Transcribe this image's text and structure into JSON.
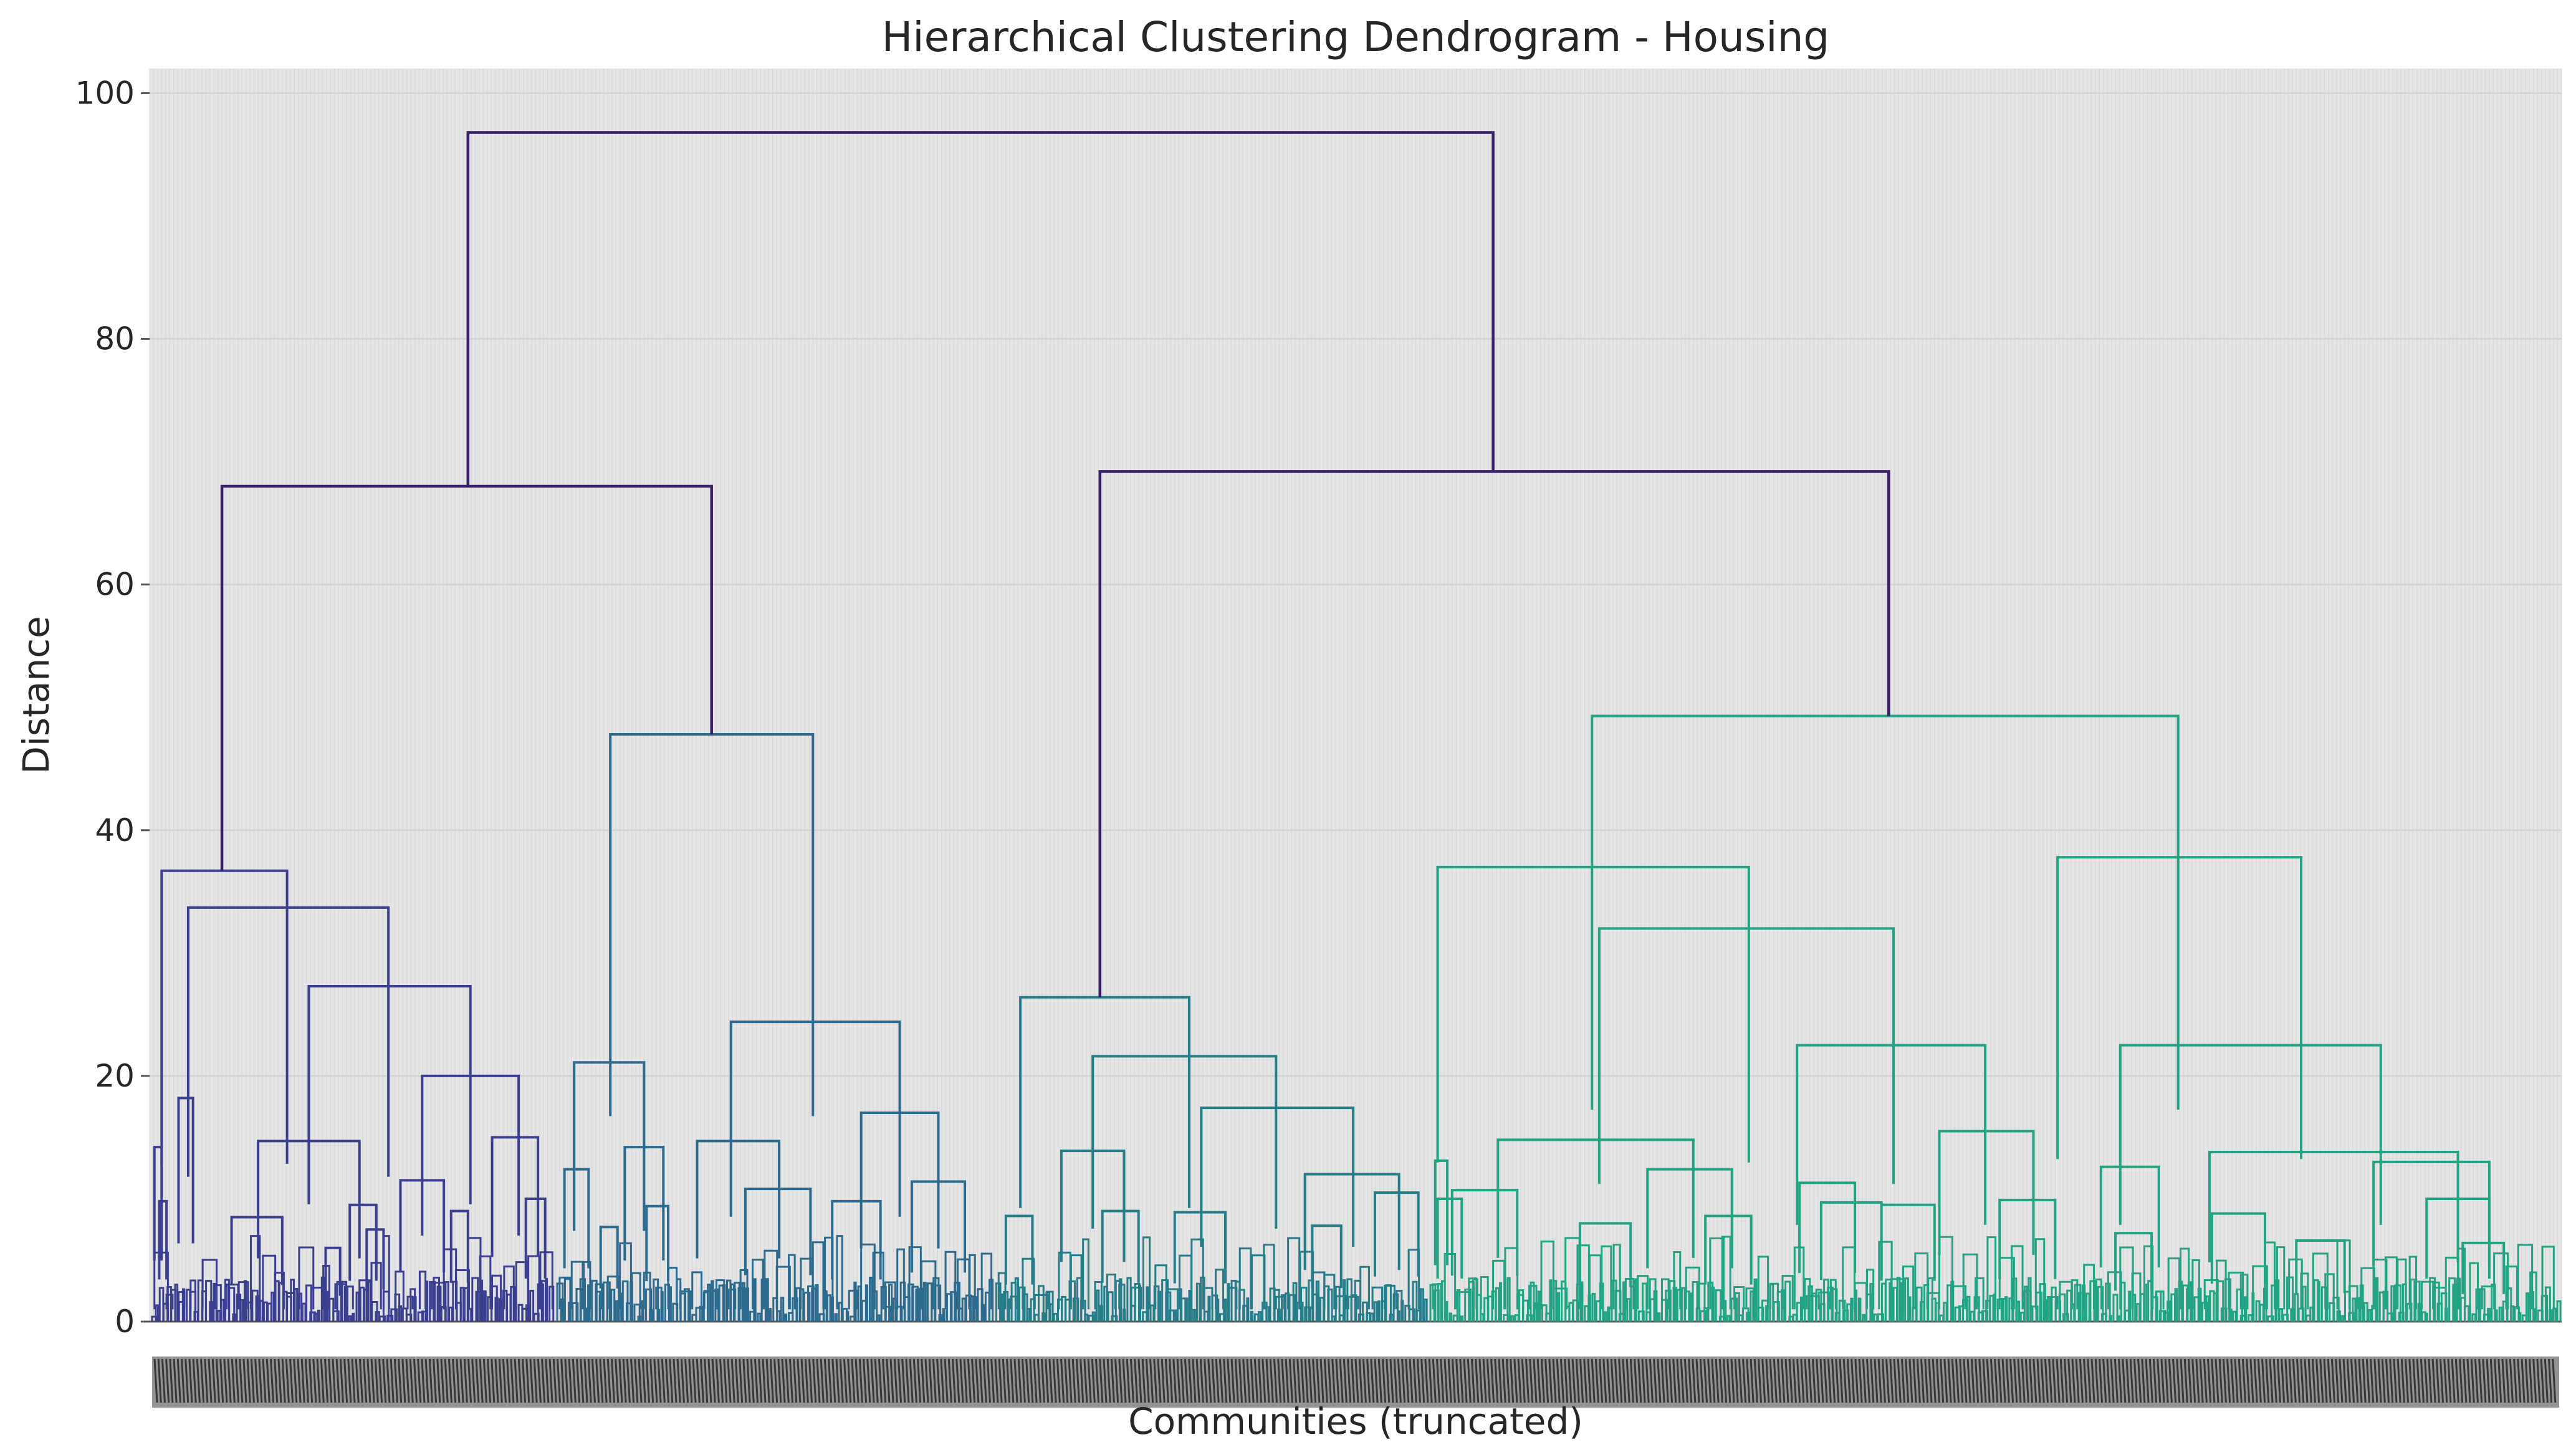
{
  "chart_data": {
    "type": "dendrogram",
    "title": "Hierarchical Clustering Dendrogram - Housing",
    "xlabel": "Communities (truncated)",
    "ylabel": "Distance",
    "ylim": [
      0,
      102
    ],
    "yticks": [
      0,
      20,
      40,
      60,
      80,
      100
    ],
    "xlim": [
      0,
      1000
    ],
    "grid": true,
    "leaf_labels": "dense, overlapping numeric leaf labels (illegible)",
    "colors": {
      "background": "#e5e5e5",
      "grid": "#d2d2d2",
      "top_link": "#3b1f6b",
      "cluster_1": "#3b3f8f",
      "cluster_2": "#2c6a8e",
      "cluster_3": "#267d8a",
      "cluster_4": "#22a384"
    },
    "top_links": [
      {
        "xl": 132,
        "xr": 557,
        "h": 96.8
      },
      {
        "xl": 30,
        "xr": 233,
        "h": 68.0
      },
      {
        "xl": 394,
        "xr": 721,
        "h": 69.2
      }
    ],
    "clusters": [
      {
        "name": "cluster_1",
        "color": "#3b3f8f",
        "links": [
          {
            "xl": 5,
            "xr": 57,
            "h": 36.7
          },
          {
            "xl": 16,
            "xr": 99,
            "h": 33.7
          },
          {
            "xl": 66,
            "xr": 133,
            "h": 27.3
          },
          {
            "xl": 45,
            "xr": 87,
            "h": 14.7
          },
          {
            "xl": 113,
            "xr": 153,
            "h": 20.0
          },
          {
            "xl": 34,
            "xr": 55,
            "h": 8.5
          },
          {
            "xl": 83,
            "xr": 94,
            "h": 9.5
          },
          {
            "xl": 104,
            "xr": 122,
            "h": 11.5
          },
          {
            "xl": 142,
            "xr": 161,
            "h": 15.0
          },
          {
            "xl": 12,
            "xr": 18,
            "h": 18.2
          },
          {
            "xl": 2,
            "xr": 5,
            "h": 14.2
          },
          {
            "xl": 4,
            "xr": 7,
            "h": 9.8
          },
          {
            "xl": 156,
            "xr": 164,
            "h": 10.0
          },
          {
            "xl": 125,
            "xr": 132,
            "h": 9.0
          },
          {
            "xl": 73,
            "xr": 79,
            "h": 6.0
          },
          {
            "xl": 90,
            "xr": 97,
            "h": 7.5
          }
        ],
        "leaf_from": 0,
        "leaf_to": 168
      },
      {
        "name": "cluster_2",
        "color": "#2c6a8e",
        "links": [
          {
            "xl": 191,
            "xr": 275,
            "h": 47.8
          },
          {
            "xl": 176,
            "xr": 205,
            "h": 21.1
          },
          {
            "xl": 241,
            "xr": 311,
            "h": 24.4
          },
          {
            "xl": 227,
            "xr": 261,
            "h": 14.7
          },
          {
            "xl": 295,
            "xr": 327,
            "h": 17.0
          },
          {
            "xl": 172,
            "xr": 182,
            "h": 12.4
          },
          {
            "xl": 197,
            "xr": 213,
            "h": 14.2
          },
          {
            "xl": 247,
            "xr": 274,
            "h": 10.8
          },
          {
            "xl": 316,
            "xr": 338,
            "h": 11.4
          },
          {
            "xl": 283,
            "xr": 303,
            "h": 9.8
          },
          {
            "xl": 187,
            "xr": 194,
            "h": 7.7
          },
          {
            "xl": 206,
            "xr": 215,
            "h": 9.4
          }
        ],
        "leaf_from": 168,
        "leaf_to": 350
      },
      {
        "name": "cluster_3",
        "color": "#267d8a",
        "links": [
          {
            "xl": 361,
            "xr": 431,
            "h": 26.4
          },
          {
            "xl": 391,
            "xr": 467,
            "h": 21.6
          },
          {
            "xl": 436,
            "xr": 499,
            "h": 17.4
          },
          {
            "xl": 378,
            "xr": 404,
            "h": 13.9
          },
          {
            "xl": 479,
            "xr": 518,
            "h": 12.0
          },
          {
            "xl": 508,
            "xr": 526,
            "h": 10.5
          },
          {
            "xl": 425,
            "xr": 446,
            "h": 8.9
          },
          {
            "xl": 395,
            "xr": 410,
            "h": 9.0
          },
          {
            "xl": 355,
            "xr": 366,
            "h": 8.6
          },
          {
            "xl": 482,
            "xr": 494,
            "h": 7.8
          }
        ],
        "leaf_from": 350,
        "leaf_to": 530
      },
      {
        "name": "cluster_4",
        "color": "#22a384",
        "links": [
          {
            "xl": 598,
            "xr": 841,
            "h": 49.3
          },
          {
            "xl": 534,
            "xr": 663,
            "h": 37.0
          },
          {
            "xl": 601,
            "xr": 723,
            "h": 32.0
          },
          {
            "xl": 791,
            "xr": 892,
            "h": 37.8
          },
          {
            "xl": 559,
            "xr": 640,
            "h": 14.8
          },
          {
            "xl": 683,
            "xr": 761,
            "h": 22.5
          },
          {
            "xl": 817,
            "xr": 925,
            "h": 22.5
          },
          {
            "xl": 742,
            "xr": 781,
            "h": 15.5
          },
          {
            "xl": 854,
            "xr": 957,
            "h": 13.8
          },
          {
            "xl": 922,
            "xr": 970,
            "h": 13.0
          },
          {
            "xl": 540,
            "xr": 567,
            "h": 10.7
          },
          {
            "xl": 621,
            "xr": 656,
            "h": 12.4
          },
          {
            "xl": 684,
            "xr": 707,
            "h": 11.3
          },
          {
            "xl": 809,
            "xr": 833,
            "h": 12.6
          },
          {
            "xl": 533,
            "xr": 538,
            "h": 13.1
          },
          {
            "xl": 534,
            "xr": 544,
            "h": 10.0
          },
          {
            "xl": 767,
            "xr": 790,
            "h": 9.9
          },
          {
            "xl": 718,
            "xr": 740,
            "h": 9.5
          },
          {
            "xl": 855,
            "xr": 877,
            "h": 8.8
          },
          {
            "xl": 944,
            "xr": 970,
            "h": 10.0
          },
          {
            "xl": 693,
            "xr": 718,
            "h": 9.7
          },
          {
            "xl": 815,
            "xr": 830,
            "h": 7.2
          },
          {
            "xl": 645,
            "xr": 664,
            "h": 8.6
          },
          {
            "xl": 593,
            "xr": 614,
            "h": 8.0
          },
          {
            "xl": 890,
            "xr": 910,
            "h": 6.6
          },
          {
            "xl": 959,
            "xr": 976,
            "h": 6.4
          }
        ],
        "leaf_from": 530,
        "leaf_to": 1000
      }
    ]
  }
}
